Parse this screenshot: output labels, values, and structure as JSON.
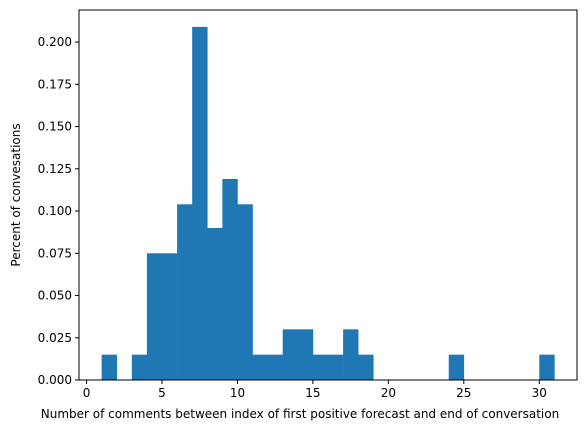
{
  "chart_data": {
    "type": "bar",
    "title": "",
    "xlabel": "Number of comments between index of first positive forecast and end of conversation",
    "ylabel": "Percent of convesations",
    "xlim": [
      -0.5,
      32.5
    ],
    "ylim": [
      0,
      0.219
    ],
    "x_ticks": [
      0,
      5,
      10,
      15,
      20,
      25,
      30
    ],
    "y_ticks": [
      0.0,
      0.025,
      0.05,
      0.075,
      0.1,
      0.125,
      0.15,
      0.175,
      0.2
    ],
    "y_tick_labels": [
      "0.000",
      "0.025",
      "0.050",
      "0.075",
      "0.100",
      "0.125",
      "0.150",
      "0.175",
      "0.200"
    ],
    "bin_width": 1,
    "bin_starts": [
      1,
      3,
      4,
      5,
      6,
      7,
      8,
      9,
      10,
      11,
      12,
      13,
      14,
      15,
      16,
      17,
      18,
      24,
      30
    ],
    "values": [
      0.015,
      0.015,
      0.075,
      0.075,
      0.104,
      0.209,
      0.09,
      0.119,
      0.104,
      0.015,
      0.015,
      0.03,
      0.03,
      0.015,
      0.015,
      0.03,
      0.015,
      0.015,
      0.015
    ],
    "bar_color": "#1f77b4",
    "grid": false,
    "legend": false
  }
}
